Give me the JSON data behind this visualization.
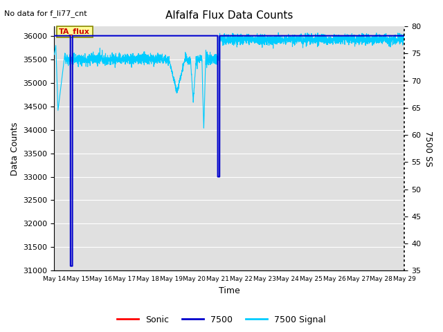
{
  "title": "Alfalfa Flux Data Counts",
  "top_left_text": "No data for f_li77_cnt",
  "xlabel": "Time",
  "ylabel_left": "Data Counts",
  "ylabel_right": "7500 SS",
  "ylim_left": [
    31000,
    36200
  ],
  "ylim_right": [
    35,
    80
  ],
  "yticks_left": [
    31000,
    31500,
    32000,
    32500,
    33000,
    33500,
    34000,
    34500,
    35000,
    35500,
    36000
  ],
  "yticks_right": [
    35,
    40,
    45,
    50,
    55,
    60,
    65,
    70,
    75,
    80
  ],
  "x_tick_labels": [
    "May 14",
    "May 15",
    "May 16",
    "May 17",
    "May 18",
    "May 19",
    "May 20",
    "May 21",
    "May 22",
    "May 23",
    "May 24",
    "May 25",
    "May 26",
    "May 27",
    "May 28",
    "May 29"
  ],
  "bg_color": "#e0e0e0",
  "grid_color": "#ffffff",
  "annotation_box_text": "TA_flux",
  "annotation_box_facecolor": "#ffff99",
  "annotation_box_edgecolor": "#888800",
  "annotation_text_color": "#cc0000",
  "legend_entries": [
    "Sonic",
    "7500",
    "7500 Signal"
  ],
  "legend_colors": [
    "#ff0000",
    "#0000cc",
    "#00ccff"
  ],
  "line_7500_color": "#0000cc",
  "line_signal_color": "#00ccff",
  "line_sonic_color": "#ff0000",
  "figsize": [
    6.4,
    4.8
  ],
  "dpi": 100
}
